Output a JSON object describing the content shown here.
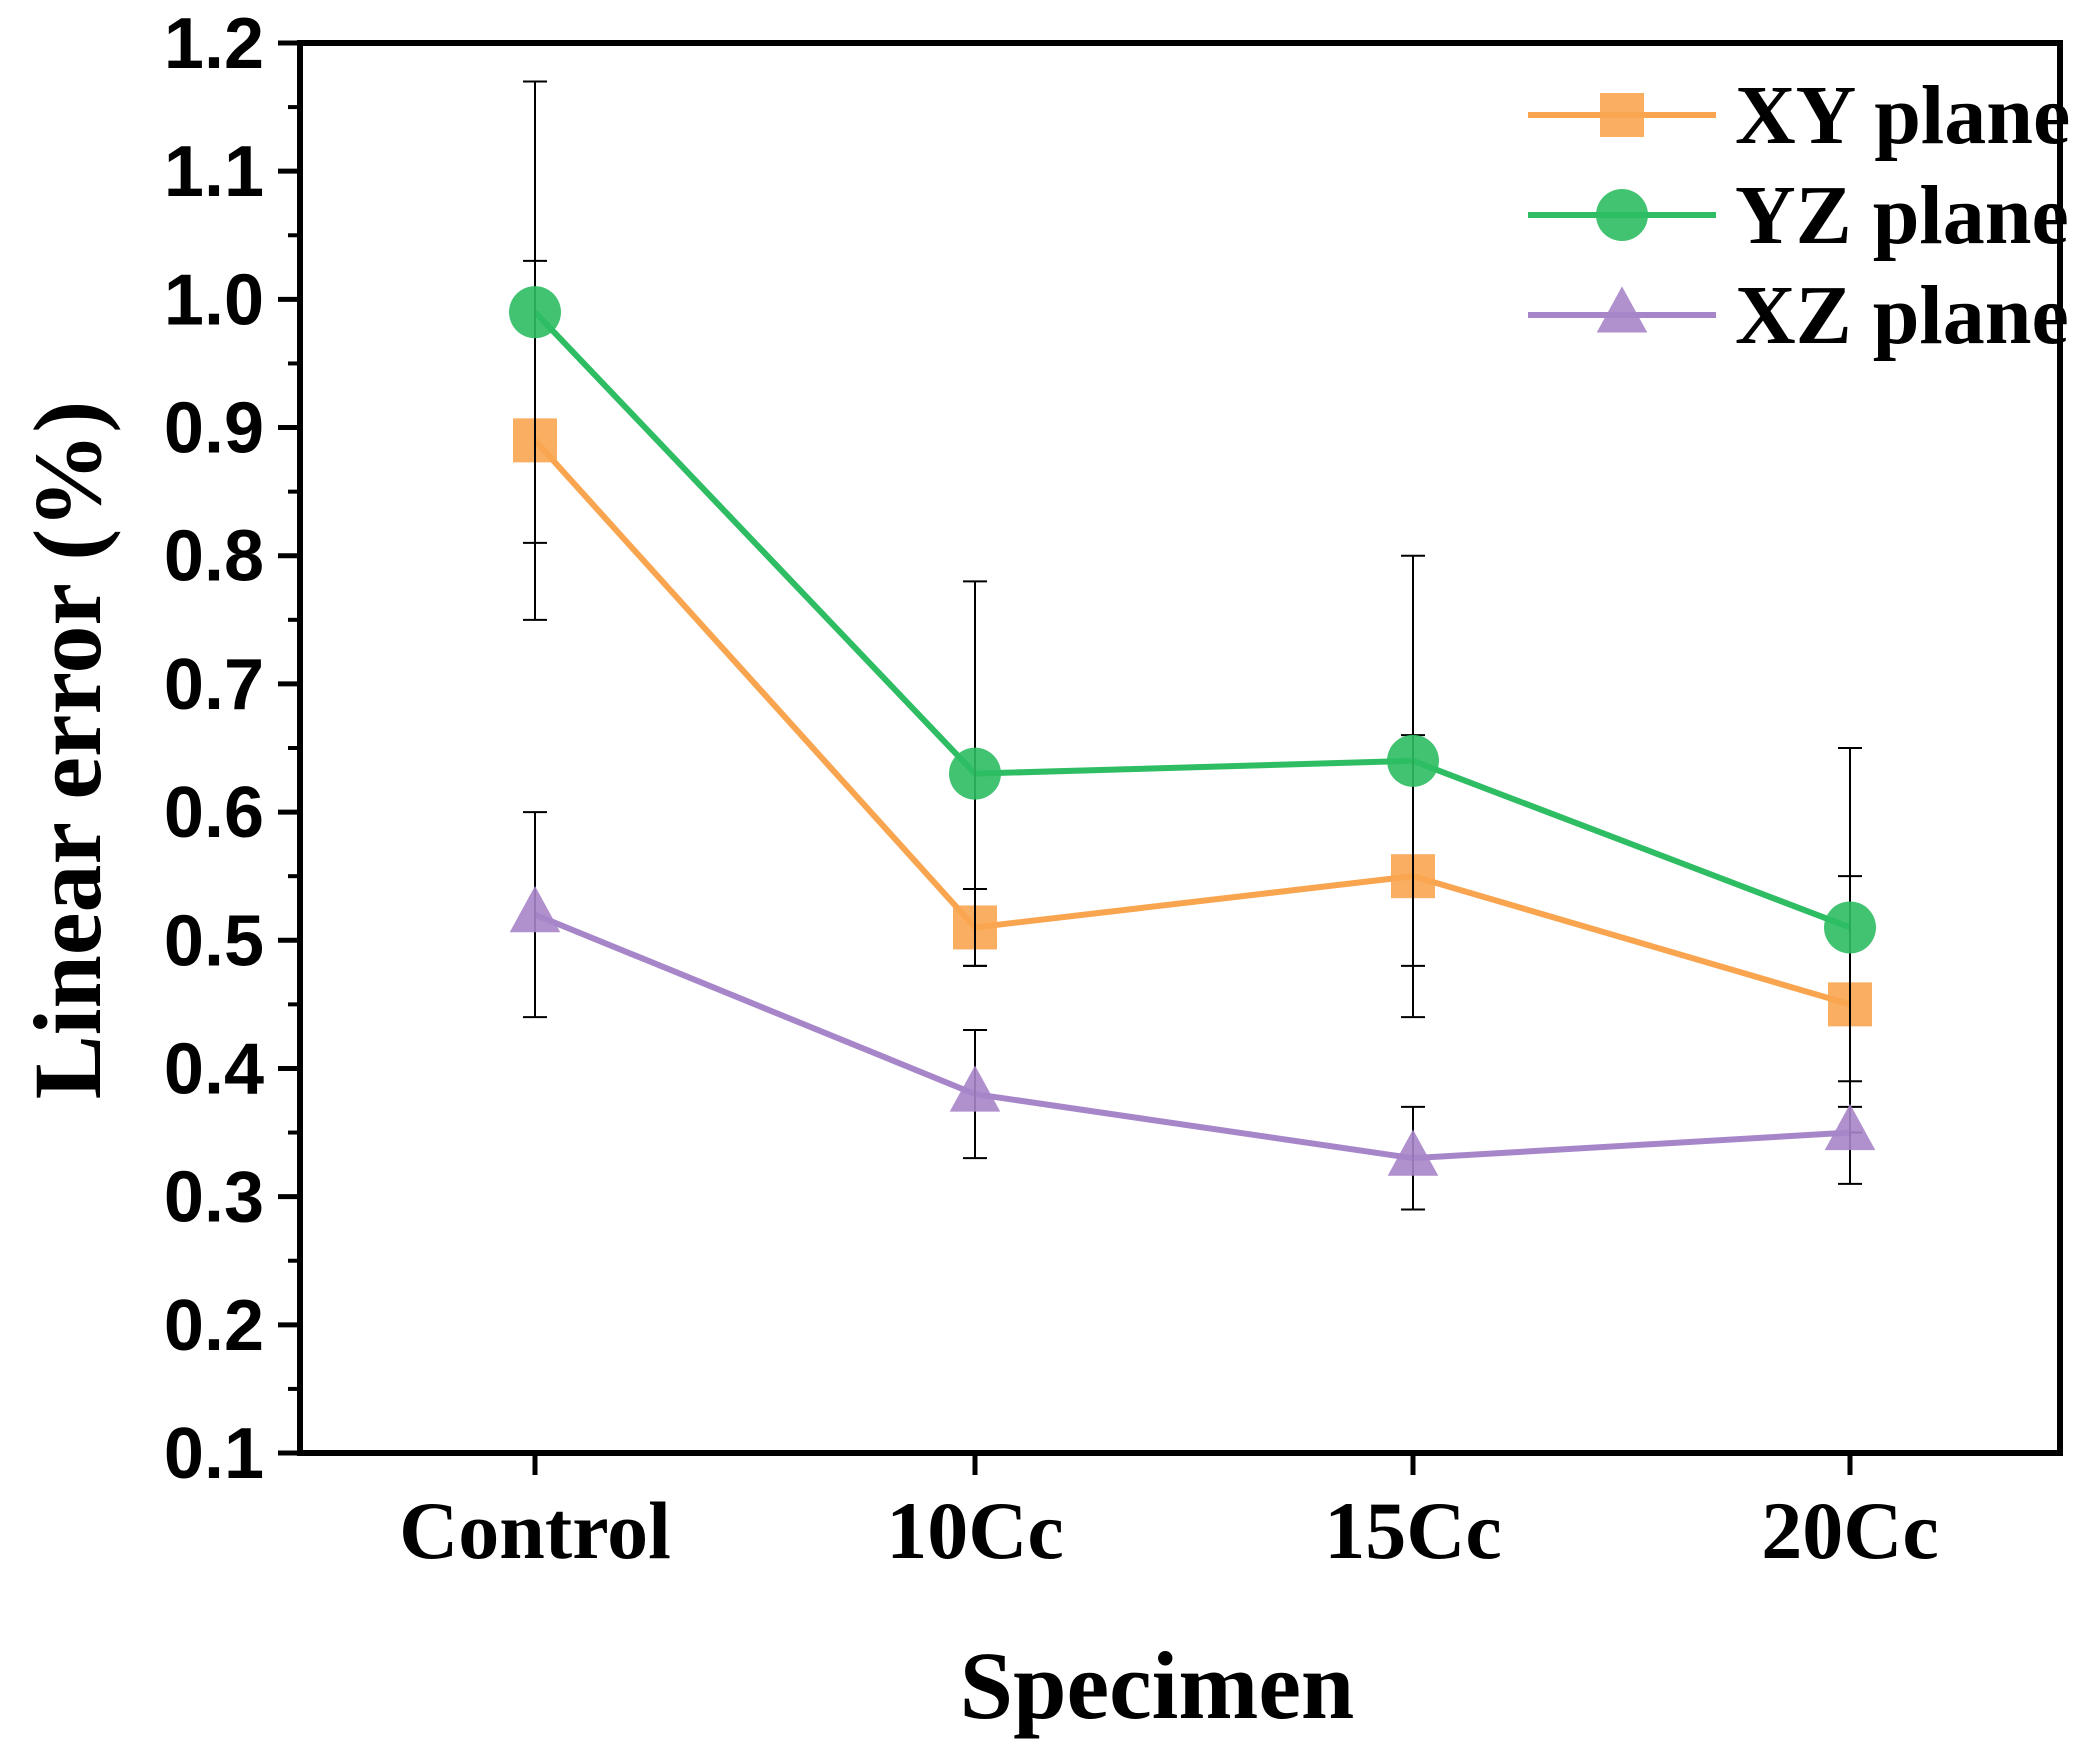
{
  "chart_data": {
    "type": "line",
    "title": "",
    "xlabel": "Specimen",
    "ylabel": "Linear error (%)",
    "categories": [
      "Control",
      "10Cc",
      "15Cc",
      "20Cc"
    ],
    "ylim": [
      0.1,
      1.2
    ],
    "yticks": [
      "0.1",
      "0.2",
      "0.3",
      "0.4",
      "0.5",
      "0.6",
      "0.7",
      "0.8",
      "0.9",
      "1.0",
      "1.1",
      "1.2"
    ],
    "grid": false,
    "legend_position": "top-right",
    "series": [
      {
        "name": "XY plane",
        "marker": "square",
        "color": "#F9A550",
        "values": [
          0.89,
          0.51,
          0.55,
          0.45
        ],
        "errors": [
          0.14,
          0.03,
          0.11,
          0.1
        ]
      },
      {
        "name": "YZ plane",
        "marker": "circle",
        "color": "#2EBD63",
        "values": [
          0.99,
          0.63,
          0.64,
          0.51
        ],
        "errors": [
          0.18,
          0.15,
          0.16,
          0.14
        ]
      },
      {
        "name": "XZ plane",
        "marker": "triangle",
        "color": "#A785C9",
        "values": [
          0.52,
          0.38,
          0.33,
          0.35
        ],
        "errors": [
          0.08,
          0.05,
          0.04,
          0.04
        ]
      }
    ]
  }
}
